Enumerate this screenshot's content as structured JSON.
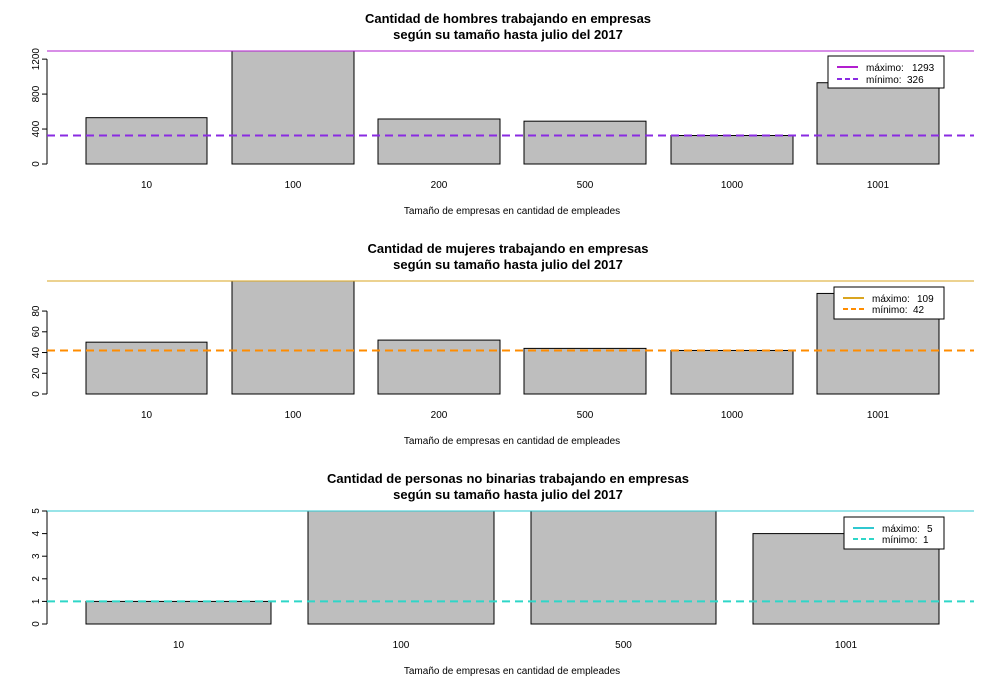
{
  "chart_data": [
    {
      "type": "bar",
      "title": [
        "Cantidad de hombres trabajando en empresas",
        "según su tamaño hasta julio del 2017"
      ],
      "xlabel": "Tamaño de empresas en cantidad de empleades",
      "ylabel": "",
      "categories": [
        "10",
        "100",
        "200",
        "500",
        "1000",
        "1001"
      ],
      "values": [
        530,
        1293,
        515,
        490,
        326,
        930
      ],
      "ylim": [
        0,
        1293
      ],
      "yticks": [
        0,
        400,
        800,
        1200
      ],
      "bar_color": "#bebebe",
      "hlines": [
        {
          "label": "máximo:",
          "value": 1293,
          "value_text": "1293",
          "color": "#b21ecf",
          "style": "solid"
        },
        {
          "label": "mínimo:",
          "value": 326,
          "value_text": "326",
          "color": "#8a2be2",
          "style": "dashed"
        }
      ],
      "legend_position": "top-right"
    },
    {
      "type": "bar",
      "title": [
        "Cantidad de mujeres trabajando en empresas",
        "según su tamaño hasta julio del 2017"
      ],
      "xlabel": "Tamaño de empresas en cantidad de empleades",
      "ylabel": "",
      "categories": [
        "10",
        "100",
        "200",
        "500",
        "1000",
        "1001"
      ],
      "values": [
        50,
        109,
        52,
        44,
        42,
        97
      ],
      "ylim": [
        0,
        109
      ],
      "yticks": [
        0,
        20,
        40,
        60,
        80
      ],
      "bar_color": "#bebebe",
      "hlines": [
        {
          "label": "máximo:",
          "value": 109,
          "value_text": "109",
          "color": "#daa520",
          "style": "solid"
        },
        {
          "label": "mínimo:",
          "value": 42,
          "value_text": "42",
          "color": "#ff8c00",
          "style": "dashed"
        }
      ],
      "legend_position": "top-right"
    },
    {
      "type": "bar",
      "title": [
        "Cantidad de personas no binarias trabajando en empresas",
        "según su tamaño hasta julio del 2017"
      ],
      "xlabel": "Tamaño de empresas en cantidad de empleades",
      "ylabel": "",
      "categories": [
        "10",
        "100",
        "500",
        "1001"
      ],
      "values": [
        1,
        5,
        5,
        4
      ],
      "ylim": [
        0,
        5
      ],
      "yticks": [
        0,
        1,
        2,
        3,
        4,
        5
      ],
      "bar_color": "#bebebe",
      "hlines": [
        {
          "label": "máximo:",
          "value": 5,
          "value_text": "5",
          "color": "#30c8d0",
          "style": "solid"
        },
        {
          "label": "mínimo:",
          "value": 1,
          "value_text": "1",
          "color": "#2ed6c8",
          "style": "dashed"
        }
      ],
      "legend_position": "top-right"
    }
  ]
}
